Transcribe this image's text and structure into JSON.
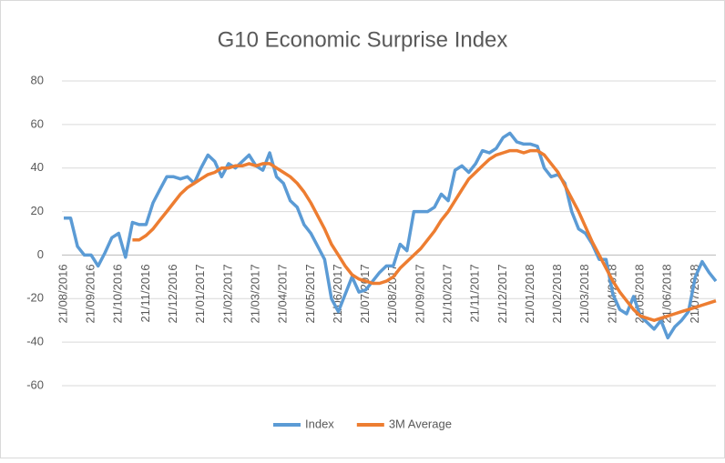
{
  "chart_data": {
    "type": "line",
    "title": "G10 Economic Surprise Index",
    "categories": [
      "21/08/2016",
      null,
      null,
      null,
      "21/09/2016",
      null,
      null,
      null,
      "21/10/2016",
      null,
      null,
      null,
      "21/11/2016",
      null,
      null,
      null,
      "21/12/2016",
      null,
      null,
      null,
      "21/01/2017",
      null,
      null,
      null,
      "21/02/2017",
      null,
      null,
      null,
      "21/03/2017",
      null,
      null,
      null,
      "21/04/2017",
      null,
      null,
      null,
      "21/05/2017",
      null,
      null,
      null,
      "21/06/2017",
      null,
      null,
      null,
      "21/07/2017",
      null,
      null,
      null,
      "21/08/2017",
      null,
      null,
      null,
      "21/09/2017",
      null,
      null,
      null,
      "21/10/2017",
      null,
      null,
      null,
      "21/11/2017",
      null,
      null,
      null,
      "21/12/2017",
      null,
      null,
      null,
      "21/01/2018",
      null,
      null,
      null,
      "21/02/2018",
      null,
      null,
      null,
      "21/03/2018",
      null,
      null,
      null,
      "21/04/2018",
      null,
      null,
      null,
      "21/05/2018",
      null,
      null,
      null,
      "21/06/2018",
      null,
      null,
      null,
      "21/07/2018",
      null,
      null,
      null
    ],
    "series": [
      {
        "name": "Index",
        "color": "#5b9bd5",
        "values": [
          17,
          17,
          4,
          0,
          0,
          -5,
          1,
          8,
          10,
          -1,
          15,
          14,
          14,
          24,
          30,
          36,
          36,
          35,
          36,
          33,
          40,
          46,
          43,
          36,
          42,
          40,
          43,
          46,
          41,
          39,
          47,
          36,
          33,
          25,
          22,
          14,
          10,
          4,
          -2,
          -20,
          -26,
          -18,
          -10,
          -17,
          -16,
          -12,
          -8,
          -5,
          -5,
          5,
          2,
          20,
          20,
          20,
          22,
          28,
          25,
          39,
          41,
          38,
          42,
          48,
          47,
          49,
          54,
          56,
          52,
          51,
          51,
          50,
          40,
          36,
          37,
          33,
          20,
          12,
          10,
          5,
          -2,
          -2,
          -18,
          -25,
          -27,
          -19,
          -28,
          -31,
          -34,
          -30,
          -38,
          -33,
          -30,
          -26,
          -10,
          -3,
          -8,
          -12
        ]
      },
      {
        "name": "3M Average",
        "color": "#ed7d31",
        "values": [
          null,
          null,
          null,
          null,
          null,
          null,
          null,
          null,
          null,
          null,
          7,
          7,
          9,
          12,
          16,
          20,
          24,
          28,
          31,
          33,
          35,
          37,
          38,
          40,
          40,
          41,
          41,
          42,
          41,
          42,
          42,
          40,
          38,
          36,
          33,
          29,
          24,
          18,
          12,
          5,
          0,
          -5,
          -9,
          -11,
          -12,
          -13,
          -13,
          -12,
          -10,
          -6,
          -3,
          0,
          3,
          7,
          11,
          16,
          20,
          25,
          30,
          35,
          38,
          41,
          44,
          46,
          47,
          48,
          48,
          47,
          48,
          48,
          46,
          42,
          38,
          32,
          26,
          20,
          13,
          6,
          0,
          -6,
          -12,
          -17,
          -21,
          -25,
          -28,
          -29,
          -30,
          -29,
          -28,
          -27,
          -26,
          -25,
          -24,
          -23,
          -22,
          -21
        ]
      }
    ],
    "ylim": [
      -60,
      80
    ],
    "yticks": [
      -60,
      -40,
      -20,
      0,
      20,
      40,
      60,
      80
    ],
    "grid": true,
    "legend": "bottom"
  }
}
